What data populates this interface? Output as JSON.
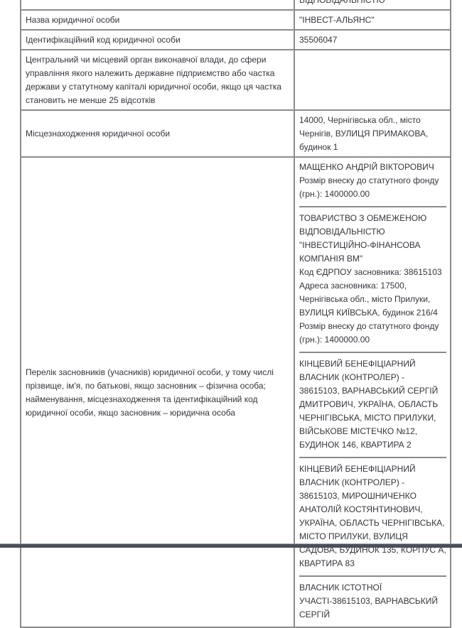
{
  "rows": [
    {
      "label": "",
      "value": "ВІДПОВІДАЛЬНІСТЮ"
    },
    {
      "label": "Назва юридичної особи",
      "value": "\"ІНВЕСТ-АЛЬЯНС\""
    },
    {
      "label": "Ідентифікаційний код юридичної особи",
      "value": "35506047"
    },
    {
      "label": "Центральний чи місцевий орган виконавчої влади, до сфери управління якого належить державне підприємство або частка держави у статутному капіталі юридичної особи, якщо ця частка становить не менше 25 відсотків",
      "value": ""
    },
    {
      "label": "Місцезнаходження юридичної особи",
      "value": "14000, Чернігівська обл., місто Чернігів, ВУЛИЦЯ ПРИМАКОВА, будинок 1"
    },
    {
      "label": "Перелік засновників (учасників) юридичної особи, у тому числі прізвище, ім'я, по батькові, якщо засновник – фізична особа; найменування, місцезнаходження та ідентифікаційний код юридичної особи, якщо засновник – юридична особа"
    }
  ],
  "founders": [
    [
      "МАЩЕНКО АНДРІЙ ВІКТОРОВИЧ",
      "Розмір внеску до статутного фонду (грн.): 1400000.00"
    ],
    [
      "ТОВАРИСТВО З ОБМЕЖЕНОЮ ВІДПОВІДАЛЬНІСТЮ \"ІНВЕСТИЦІЙНО-ФІНАНСОВА КОМПАНІЯ ВМ\"",
      "Код ЄДРПОУ засновника: 38615103",
      "Адреса засновника: 17500, Чернігівська обл., місто Прилуки, ВУЛИЦЯ КИЇВСЬКА, будинок 216/4",
      "Розмір внеску до статутного фонду (грн.): 1400000.00"
    ],
    [
      "КІНЦЕВИЙ БЕНЕФІЦІАРНИЙ ВЛАСНИК (КОНТРОЛЕР) - 38615103, ВАРНАВСЬКИЙ СЕРГІЙ ДМИТРОВИЧ, УКРАЇНА, ОБЛАСТЬ ЧЕРНІГІВСЬКА, МІСТО ПРИЛУКИ, ВІЙСЬКОВЕ МІСТЕЧКО №12, БУДИНОК 146, КВАРТИРА 2"
    ],
    [
      "КІНЦЕВИЙ БЕНЕФІЦІАРНИЙ ВЛАСНИК (КОНТРОЛЕР) - 38615103, МИРОШНИЧЕНКО АНАТОЛІЙ КОСТЯНТИНОВИЧ, УКРАЇНА, ОБЛАСТЬ ЧЕРНІГІВСЬКА, МІСТО ПРИЛУКИ, ВУЛИЦЯ САДОВА, БУДИНОК 135, КОРПУС А, КВАРТИРА 83"
    ],
    [
      "ВЛАСНИК ІСТОТНОЇ УЧАСТІ-38615103, ВАРНАВСЬКИЙ СЕРГІЙ"
    ]
  ]
}
